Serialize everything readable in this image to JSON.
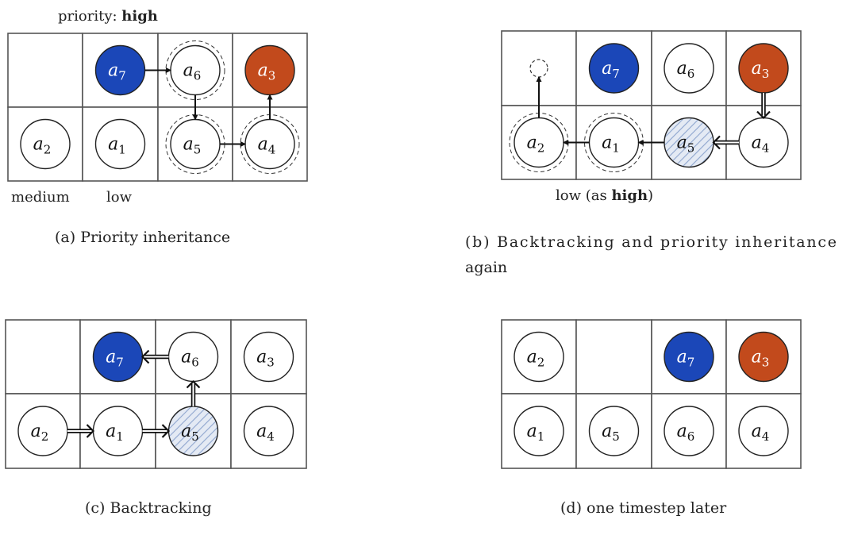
{
  "colors": {
    "high_priority": "#1b47b8",
    "stuck": "#c24a1c",
    "hatched": "#8fa6cf",
    "empty": "#ffffff"
  },
  "legend_a": {
    "priority_prefix": "priority: ",
    "priority_value": "high",
    "col0": "medium",
    "col1": "low"
  },
  "legend_b": {
    "prefix": "low (as ",
    "value": "high",
    "suffix": ")"
  },
  "captions": {
    "a": "(a) Priority inheritance",
    "b_line1": "(b) Backtracking and priority inheritance",
    "b_line2": "again",
    "c": "(c) Backtracking",
    "d": "(d) one timestep later"
  },
  "panels": {
    "a": {
      "agents": [
        {
          "id": "7",
          "row": 0,
          "col": 1,
          "fill": "blue"
        },
        {
          "id": "6",
          "row": 0,
          "col": 2,
          "fill": "white",
          "ring": true
        },
        {
          "id": "3",
          "row": 0,
          "col": 3,
          "fill": "orange"
        },
        {
          "id": "2",
          "row": 1,
          "col": 0,
          "fill": "white"
        },
        {
          "id": "1",
          "row": 1,
          "col": 1,
          "fill": "white"
        },
        {
          "id": "5",
          "row": 1,
          "col": 2,
          "fill": "white",
          "ring": true
        },
        {
          "id": "4",
          "row": 1,
          "col": 3,
          "fill": "white",
          "ring": true
        }
      ],
      "arrows": [
        {
          "from": [
            0,
            1
          ],
          "to": [
            0,
            2
          ],
          "style": "solid"
        },
        {
          "from": [
            0,
            2
          ],
          "to": [
            1,
            2
          ],
          "style": "solid"
        },
        {
          "from": [
            1,
            2
          ],
          "to": [
            1,
            3
          ],
          "style": "solid"
        },
        {
          "from": [
            1,
            3
          ],
          "to": [
            0,
            3
          ],
          "style": "solid"
        }
      ]
    },
    "b": {
      "agents": [
        {
          "id": "7",
          "row": 0,
          "col": 1,
          "fill": "blue"
        },
        {
          "id": "6",
          "row": 0,
          "col": 2,
          "fill": "white"
        },
        {
          "id": "3",
          "row": 0,
          "col": 3,
          "fill": "orange"
        },
        {
          "id": "2",
          "row": 1,
          "col": 0,
          "fill": "white",
          "ring": true
        },
        {
          "id": "1",
          "row": 1,
          "col": 1,
          "fill": "white",
          "ring": true
        },
        {
          "id": "5",
          "row": 1,
          "col": 2,
          "fill": "hatched"
        },
        {
          "id": "4",
          "row": 1,
          "col": 3,
          "fill": "white"
        }
      ],
      "ghost": {
        "row": 0,
        "col": 0
      },
      "arrows": [
        {
          "from": [
            1,
            0
          ],
          "to": [
            0,
            0
          ],
          "style": "solid",
          "target": "ghost"
        },
        {
          "from": [
            1,
            1
          ],
          "to": [
            1,
            0
          ],
          "style": "solid"
        },
        {
          "from": [
            1,
            2
          ],
          "to": [
            1,
            1
          ],
          "style": "solid"
        },
        {
          "from": [
            1,
            3
          ],
          "to": [
            1,
            2
          ],
          "style": "double"
        },
        {
          "from": [
            0,
            3
          ],
          "to": [
            1,
            3
          ],
          "style": "double"
        }
      ]
    },
    "c": {
      "agents": [
        {
          "id": "7",
          "row": 0,
          "col": 1,
          "fill": "blue"
        },
        {
          "id": "6",
          "row": 0,
          "col": 2,
          "fill": "white"
        },
        {
          "id": "3",
          "row": 0,
          "col": 3,
          "fill": "white"
        },
        {
          "id": "2",
          "row": 1,
          "col": 0,
          "fill": "white"
        },
        {
          "id": "1",
          "row": 1,
          "col": 1,
          "fill": "white"
        },
        {
          "id": "5",
          "row": 1,
          "col": 2,
          "fill": "hatched"
        },
        {
          "id": "4",
          "row": 1,
          "col": 3,
          "fill": "white"
        }
      ],
      "arrows": [
        {
          "from": [
            0,
            2
          ],
          "to": [
            0,
            1
          ],
          "style": "double"
        },
        {
          "from": [
            1,
            2
          ],
          "to": [
            0,
            2
          ],
          "style": "double"
        },
        {
          "from": [
            1,
            0
          ],
          "to": [
            1,
            1
          ],
          "style": "double"
        },
        {
          "from": [
            1,
            1
          ],
          "to": [
            1,
            2
          ],
          "style": "double"
        }
      ]
    },
    "d": {
      "agents": [
        {
          "id": "2",
          "row": 0,
          "col": 0,
          "fill": "white"
        },
        {
          "id": "7",
          "row": 0,
          "col": 2,
          "fill": "blue"
        },
        {
          "id": "3",
          "row": 0,
          "col": 3,
          "fill": "orange"
        },
        {
          "id": "1",
          "row": 1,
          "col": 0,
          "fill": "white"
        },
        {
          "id": "5",
          "row": 1,
          "col": 1,
          "fill": "white"
        },
        {
          "id": "6",
          "row": 1,
          "col": 2,
          "fill": "white"
        },
        {
          "id": "4",
          "row": 1,
          "col": 3,
          "fill": "white"
        }
      ],
      "arrows": []
    }
  }
}
